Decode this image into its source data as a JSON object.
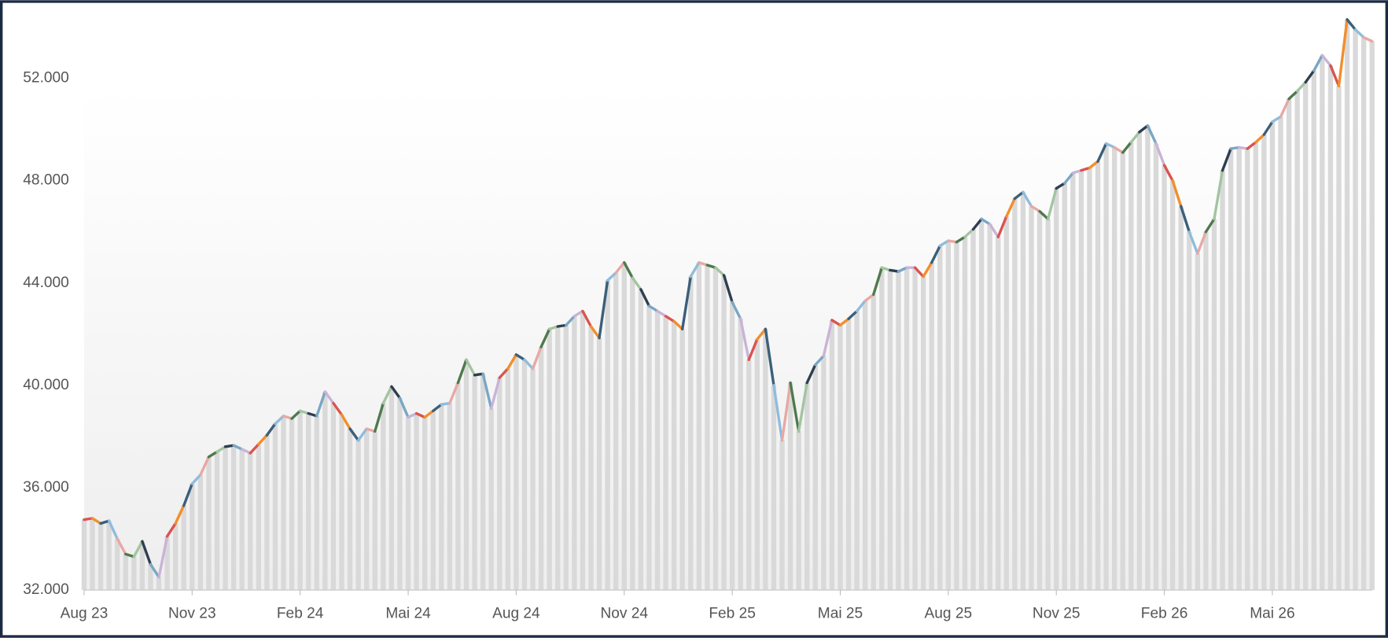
{
  "chart_data": {
    "type": "bar-line",
    "categories": [
      "Aug 23",
      null,
      null,
      null,
      null,
      null,
      null,
      null,
      null,
      null,
      null,
      null,
      null,
      "Nov 23",
      null,
      null,
      null,
      null,
      null,
      null,
      null,
      null,
      null,
      null,
      null,
      null,
      "Feb 24",
      null,
      null,
      null,
      null,
      null,
      null,
      null,
      null,
      null,
      null,
      null,
      null,
      "Mai 24",
      null,
      null,
      null,
      null,
      null,
      null,
      null,
      null,
      null,
      null,
      null,
      null,
      "Aug 24",
      null,
      null,
      null,
      null,
      null,
      null,
      null,
      null,
      null,
      null,
      null,
      null,
      "Nov 24",
      null,
      null,
      null,
      null,
      null,
      null,
      null,
      null,
      null,
      null,
      null,
      null,
      "Feb 25",
      null,
      null,
      null,
      null,
      null,
      null,
      null,
      null,
      null,
      null,
      null,
      null,
      "Mai 25",
      null,
      null,
      null,
      null,
      null,
      null,
      null,
      null,
      null,
      null,
      null,
      null,
      "Aug 25",
      null,
      null,
      null,
      null,
      null,
      null,
      null,
      null,
      null,
      null,
      null,
      null,
      "Nov 25",
      null,
      null,
      null,
      null,
      null,
      null,
      null,
      null,
      null,
      null,
      null,
      null,
      "Feb 26",
      null,
      null,
      null,
      null,
      null,
      null,
      null,
      null,
      null,
      null,
      null,
      null,
      "Mai 26",
      null,
      null,
      null,
      null,
      null,
      null,
      null,
      null,
      null,
      null,
      null,
      null
    ],
    "values": [
      34750,
      34800,
      34600,
      34700,
      34000,
      33400,
      33300,
      33900,
      33000,
      32500,
      34100,
      34600,
      35300,
      36150,
      36500,
      37200,
      37400,
      37600,
      37650,
      37500,
      37350,
      37700,
      38050,
      38500,
      38800,
      38700,
      39000,
      38900,
      38800,
      39750,
      39300,
      38850,
      38300,
      37850,
      38300,
      38200,
      39300,
      39950,
      39500,
      38750,
      38900,
      38750,
      39000,
      39250,
      39300,
      40100,
      41000,
      40400,
      40450,
      39100,
      40300,
      40650,
      41200,
      41000,
      40650,
      41500,
      42200,
      42300,
      42350,
      42700,
      42900,
      42300,
      41850,
      44100,
      44400,
      44800,
      44200,
      43750,
      43100,
      42900,
      42700,
      42500,
      42200,
      44250,
      44800,
      44700,
      44600,
      44300,
      43250,
      42600,
      41000,
      41800,
      42200,
      40000,
      37850,
      40100,
      38200,
      40100,
      40800,
      41150,
      42550,
      42350,
      42600,
      42900,
      43300,
      43550,
      44600,
      44500,
      44450,
      44600,
      44600,
      44250,
      44800,
      45450,
      45650,
      45600,
      45800,
      46100,
      46500,
      46300,
      45800,
      46600,
      47300,
      47550,
      47000,
      46800,
      46500,
      47700,
      47900,
      48300,
      48400,
      48500,
      48750,
      49450,
      49300,
      49100,
      49500,
      49900,
      50150,
      49450,
      48600,
      48000,
      47000,
      46000,
      45150,
      46000,
      46500,
      48400,
      49250,
      49300,
      49250,
      49500,
      49800,
      50300,
      50500,
      51200,
      51500,
      51850,
      52300,
      52900,
      52500,
      51700,
      54300,
      53900,
      53600,
      53450
    ],
    "bar_color": "#d9d9d9",
    "segment_colors": [
      "#d9544f",
      "#f28e2b",
      "#3b5f7a",
      "#8fbcdb",
      "#e8a8a4",
      "#4e7a4c",
      "#a3c4a0",
      "#2f3e4f",
      "#79a6c4",
      "#c9b3d6"
    ],
    "ylim": [
      32000,
      54500
    ],
    "yticks": [
      {
        "value": 32000,
        "label": "32.000"
      },
      {
        "value": 36000,
        "label": "36.000"
      },
      {
        "value": 40000,
        "label": "40.000"
      },
      {
        "value": 44000,
        "label": "44.000"
      },
      {
        "value": 48000,
        "label": "48.000"
      },
      {
        "value": 52000,
        "label": "52.000"
      }
    ]
  }
}
